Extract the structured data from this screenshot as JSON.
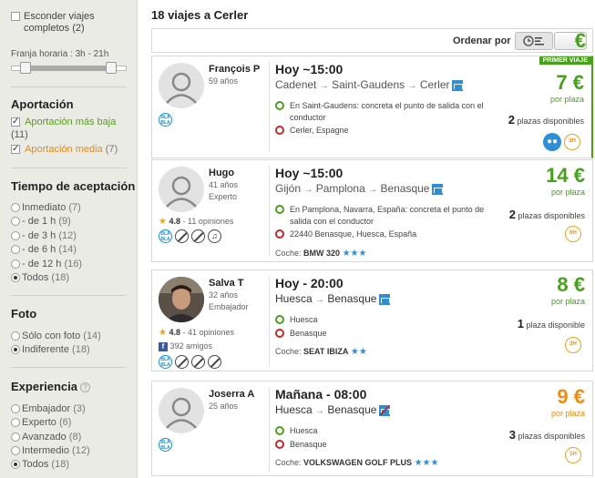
{
  "sidebar": {
    "hide_full_label": "Esconder viajes completos",
    "hide_full_count": "(2)",
    "time_range_label": "Franja horaria :  3h - 21h",
    "contribution": {
      "title": "Aportación",
      "options": [
        {
          "label": "Aportación más baja",
          "count": "(11)",
          "checked": true
        },
        {
          "label": "Aportación media",
          "count": "(7)",
          "checked": true
        }
      ]
    },
    "acceptance": {
      "title": "Tiempo de aceptación",
      "options": [
        {
          "label": "Inmediato",
          "count": "(7)",
          "checked": false
        },
        {
          "label": "- de 1 h",
          "count": "(9)",
          "checked": false
        },
        {
          "label": "- de 3 h",
          "count": "(12)",
          "checked": false
        },
        {
          "label": "- de 6 h",
          "count": "(14)",
          "checked": false
        },
        {
          "label": "- de 12 h",
          "count": "(16)",
          "checked": false
        },
        {
          "label": "Todos",
          "count": "(18)",
          "checked": true
        }
      ]
    },
    "photo": {
      "title": "Foto",
      "options": [
        {
          "label": "Sólo con foto",
          "count": "(14)",
          "checked": false
        },
        {
          "label": "Indiferente",
          "count": "(18)",
          "checked": true
        }
      ]
    },
    "experience": {
      "title": "Experiencia",
      "help": "?",
      "options": [
        {
          "label": "Embajador",
          "count": "(3)",
          "checked": false
        },
        {
          "label": "Experto",
          "count": "(6)",
          "checked": false
        },
        {
          "label": "Avanzado",
          "count": "(8)",
          "checked": false
        },
        {
          "label": "Intermedio",
          "count": "(12)",
          "checked": false
        },
        {
          "label": "Todos",
          "count": "(18)",
          "checked": true
        }
      ]
    }
  },
  "main": {
    "results_title": "18 viajes a Cerler",
    "sort_label": "Ordenar por",
    "sort_price_label": "€",
    "rides": [
      {
        "driver": "François P",
        "age": "59 años",
        "when": "Hoy ~15:00",
        "route": [
          "Cadenet",
          "Saint-Gaudens",
          "Cerler"
        ],
        "pickup": "En Saint-Gaudens: concreta el punto de salida con el conductor",
        "dropoff": "Cerler, Espagne",
        "badge": "PRIMER VIAJE",
        "price": "7 €",
        "per": "por plaza",
        "seats_num": "2",
        "seats_text": "plazas disponibles",
        "time_badge": "3H"
      },
      {
        "driver": "Hugo",
        "age": "41 años",
        "level": "Experto",
        "rating": "4.8",
        "rating_text": "- 11 opiniones",
        "when": "Hoy ~15:00",
        "route": [
          "Gijón",
          "Pamplona",
          "Benasque"
        ],
        "pickup": "En Pamplona, Navarra, España: concreta el punto de salida con el conductor",
        "dropoff": "22440 Benasque, Huesca, España",
        "car_label": "Coche:",
        "car": "BMW 320",
        "car_stars": "★★★",
        "price": "14 €",
        "per": "por plaza",
        "seats_num": "2",
        "seats_text": "plazas disponibles",
        "time_badge": "6H"
      },
      {
        "driver": "Salva T",
        "age": "32 años",
        "level": "Embajador",
        "rating": "4.8",
        "rating_text": "- 41 opiniones",
        "friends": "392 amigos",
        "when": "Hoy - 20:00",
        "route": [
          "Huesca",
          "Benasque"
        ],
        "pickup": "Huesca",
        "dropoff": "Benasque",
        "car_label": "Coche:",
        "car": "SEAT IBIZA",
        "car_stars": "★★",
        "price": "8 €",
        "per": "por plaza",
        "seats_num": "1",
        "seats_text": "plaza disponible",
        "time_badge": "3H"
      },
      {
        "driver": "Joserra A",
        "age": "25 años",
        "when": "Mañana - 08:00",
        "route": [
          "Huesca",
          "Benasque"
        ],
        "pickup": "Huesca",
        "dropoff": "Benasque",
        "car_label": "Coche:",
        "car": "VOLKSWAGEN GOLF PLUS",
        "car_stars": "★★★",
        "price": "9 €",
        "per": "por plaza",
        "seats_num": "3",
        "seats_text": "plazas disponibles",
        "time_badge": "1H"
      }
    ],
    "bla_icon": "BLA BLA",
    "arrow": "→",
    "rating_star": "★",
    "fb_glyph": "f"
  },
  "colors": {
    "green": "#47a11c",
    "orange": "#f08a12",
    "blue": "#2e8ed6"
  }
}
